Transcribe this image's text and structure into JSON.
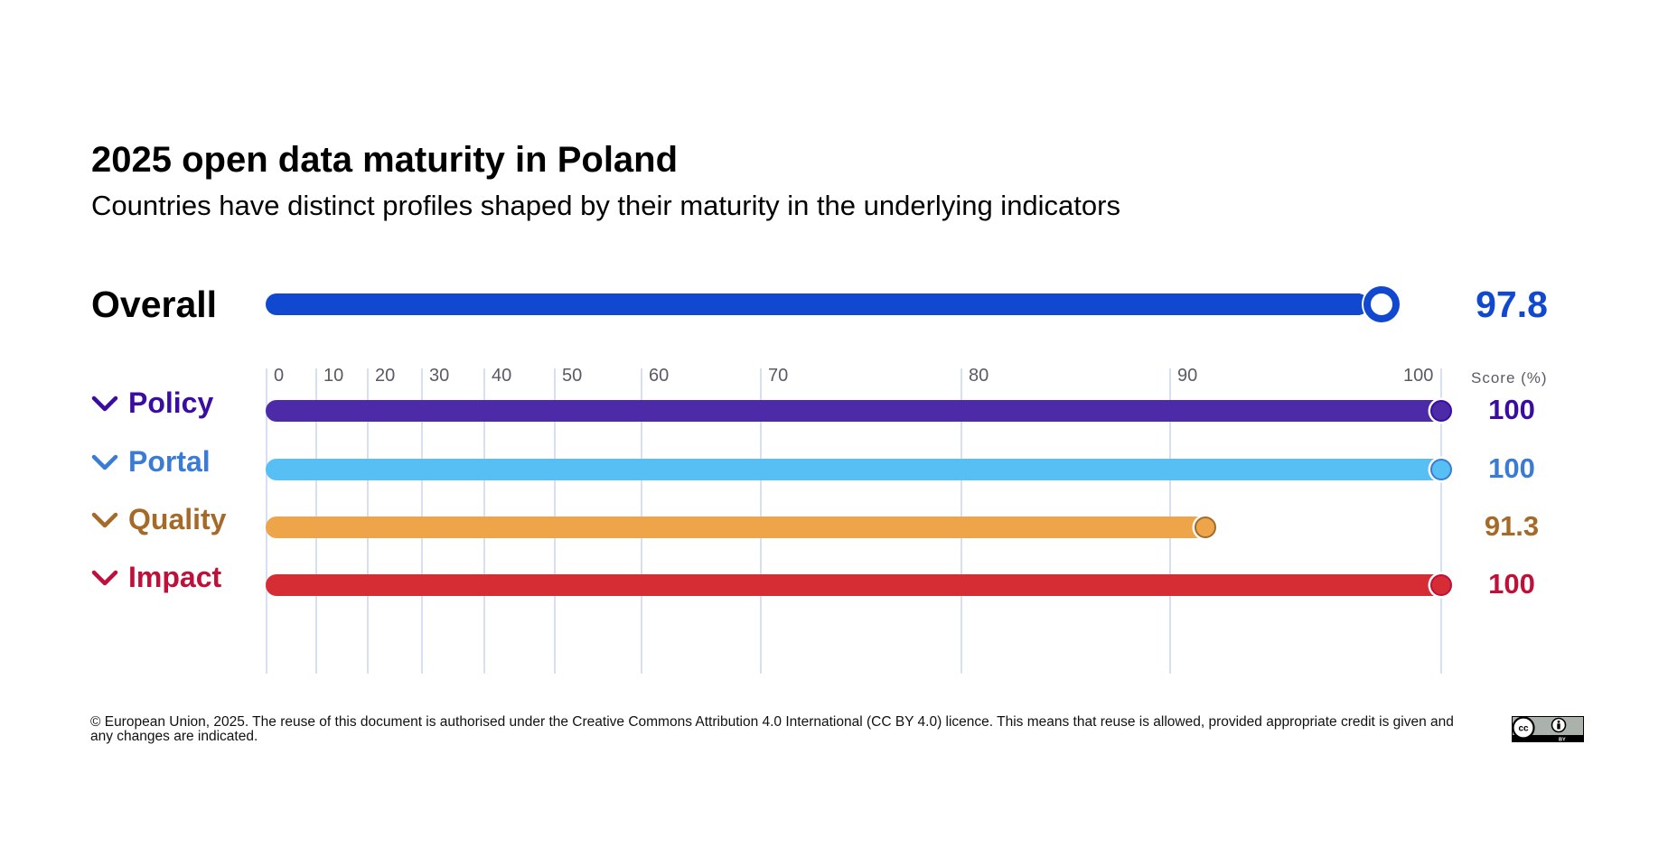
{
  "header": {
    "title": "2025 open data maturity in Poland",
    "subtitle": "Countries have distinct profiles shaped by their maturity in the underlying indicators"
  },
  "chart_data": {
    "type": "bar",
    "title": "2025 open data maturity in Poland",
    "subtitle": "Countries have distinct profiles shaped by their maturity in the underlying indicators",
    "xlabel": "Score (%)",
    "xlim": [
      0,
      100
    ],
    "x_ticks": [
      0,
      10,
      20,
      30,
      40,
      50,
      60,
      70,
      80,
      90,
      100
    ],
    "x_tick_labels": [
      "0",
      "10",
      "20",
      "30",
      "40",
      "50",
      "60",
      "70",
      "80",
      "90",
      "100"
    ],
    "grid": true,
    "overall": {
      "label": "Overall",
      "value": 97.8,
      "display": "97.8",
      "color": "#1049d0"
    },
    "categories": [
      "Policy",
      "Portal",
      "Quality",
      "Impact"
    ],
    "values": [
      100,
      100,
      91.3,
      100
    ],
    "series": [
      {
        "name": "Policy",
        "value": 100,
        "display": "100",
        "bar_color": "#4d2aa8",
        "text_color": "#3a0ca3",
        "marker_stroke": "#3a0ca3",
        "expandable": true
      },
      {
        "name": "Portal",
        "value": 100,
        "display": "100",
        "bar_color": "#58bff5",
        "text_color": "#3a7bd5",
        "marker_stroke": "#3a7bd5",
        "expandable": true
      },
      {
        "name": "Quality",
        "value": 91.3,
        "display": "91.3",
        "bar_color": "#eea448",
        "text_color": "#a66a28",
        "marker_stroke": "#a66a28",
        "expandable": true
      },
      {
        "name": "Impact",
        "value": 100,
        "display": "100",
        "bar_color": "#d62d35",
        "text_color": "#c0103a",
        "marker_stroke": "#c0103a",
        "expandable": true
      }
    ],
    "score_header": "Score (%)"
  },
  "footer": {
    "text": "© European Union, 2025. The reuse of this document is authorised under the Creative Commons Attribution 4.0 International (CC BY 4.0) licence. This means that reuse is allowed, provided appropriate credit is given and any changes are indicated.",
    "license_badge": "CC BY",
    "license_icon": "cc-by-icon"
  },
  "colors": {
    "grid": "#c9d6ee",
    "tick_text": "#5a5a66",
    "overall": "#1049d0"
  }
}
